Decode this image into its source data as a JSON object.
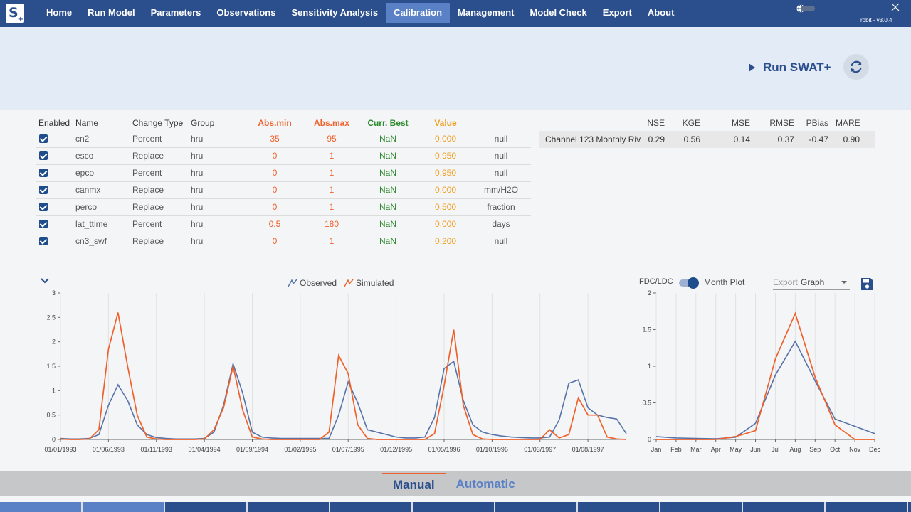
{
  "app": {
    "logo_text": "S",
    "logo_plus": "+",
    "user_version": "robit - v3.0.4"
  },
  "nav": {
    "items": [
      "Home",
      "Run Model",
      "Parameters",
      "Observations",
      "Sensitivity Analysis",
      "Calibration",
      "Management",
      "Model Check",
      "Export",
      "About"
    ],
    "active": "Calibration"
  },
  "header": {
    "run_label": "Run SWAT+"
  },
  "param_table": {
    "headers": {
      "enabled": "Enabled",
      "name": "Name",
      "change_type": "Change Type",
      "group": "Group",
      "abs_min": "Abs.min",
      "abs_max": "Abs.max",
      "curr_best": "Curr. Best",
      "value": "Value"
    },
    "rows": [
      {
        "enabled": true,
        "name": "cn2",
        "change_type": "Percent",
        "group": "hru",
        "abs_min": "35",
        "abs_max": "95",
        "curr_best": "NaN",
        "value": "0.000",
        "unit": "null"
      },
      {
        "enabled": true,
        "name": "esco",
        "change_type": "Replace",
        "group": "hru",
        "abs_min": "0",
        "abs_max": "1",
        "curr_best": "NaN",
        "value": "0.950",
        "unit": "null"
      },
      {
        "enabled": true,
        "name": "epco",
        "change_type": "Percent",
        "group": "hru",
        "abs_min": "0",
        "abs_max": "1",
        "curr_best": "NaN",
        "value": "0.950",
        "unit": "null"
      },
      {
        "enabled": true,
        "name": "canmx",
        "change_type": "Replace",
        "group": "hru",
        "abs_min": "0",
        "abs_max": "1",
        "curr_best": "NaN",
        "value": "0.000",
        "unit": "mm/H2O"
      },
      {
        "enabled": true,
        "name": "perco",
        "change_type": "Replace",
        "group": "hru",
        "abs_min": "0",
        "abs_max": "1",
        "curr_best": "NaN",
        "value": "0.500",
        "unit": "fraction"
      },
      {
        "enabled": true,
        "name": "lat_ttime",
        "change_type": "Percent",
        "group": "hru",
        "abs_min": "0.5",
        "abs_max": "180",
        "curr_best": "NaN",
        "value": "0.000",
        "unit": "days"
      },
      {
        "enabled": true,
        "name": "cn3_swf",
        "change_type": "Replace",
        "group": "hru",
        "abs_min": "0",
        "abs_max": "1",
        "curr_best": "NaN",
        "value": "0.200",
        "unit": "null"
      }
    ]
  },
  "metrics": {
    "headers": {
      "nse": "NSE",
      "kge": "KGE",
      "mse": "MSE",
      "rmse": "RMSE",
      "pbias": "PBias",
      "mare": "MARE"
    },
    "row": {
      "name": "Channel 123 Monthly Riv",
      "nse": "0.29",
      "kge": "0.56",
      "mse": "0.14",
      "rmse": "0.37",
      "pbias": "-0.47",
      "mare": "0.90"
    }
  },
  "right_controls": {
    "fdc_label": "FDC/LDC",
    "fdc_toggle_on": true,
    "month_plot_label": "Month Plot",
    "export_label": "Export",
    "export_value": "Graph"
  },
  "tabs": {
    "items": [
      "Manual",
      "Automatic"
    ],
    "active": "Manual"
  },
  "colors": {
    "observed": "#5773a8",
    "simulated": "#f0602a",
    "nav_bg": "#2b4f8c",
    "nav_active": "#5a80c6"
  },
  "chart_data": [
    {
      "type": "line",
      "title": "",
      "xlabel": "",
      "ylabel": "",
      "ylim": [
        0,
        3
      ],
      "yticks": [
        0,
        0.5,
        1,
        1.5,
        2,
        2.5,
        3
      ],
      "yticklabels": [
        "0",
        "0.5",
        "1",
        "1.5",
        "2",
        "2.5",
        "3"
      ],
      "xticklabels": [
        "01/01/1993",
        "01/06/1993",
        "01/11/1993",
        "01/04/1994",
        "01/09/1994",
        "01/02/1995",
        "01/07/1995",
        "01/12/1995",
        "01/05/1996",
        "01/10/1996",
        "01/03/1997",
        "01/08/1997"
      ],
      "x_period": "monthly, 01/1993 to 12/1997",
      "legend_position": "top-center",
      "grid": "vertical",
      "series": [
        {
          "name": "Observed",
          "values": [
            0.02,
            0.01,
            0.01,
            0.02,
            0.1,
            0.7,
            1.12,
            0.8,
            0.3,
            0.1,
            0.04,
            0.02,
            0.01,
            0.01,
            0.01,
            0.02,
            0.15,
            0.7,
            1.55,
            0.95,
            0.15,
            0.05,
            0.03,
            0.02,
            0.02,
            0.02,
            0.02,
            0.02,
            0.02,
            0.5,
            1.18,
            0.75,
            0.2,
            0.15,
            0.1,
            0.05,
            0.03,
            0.03,
            0.05,
            0.45,
            1.45,
            1.6,
            0.8,
            0.3,
            0.15,
            0.1,
            0.07,
            0.05,
            0.04,
            0.03,
            0.03,
            0.05,
            0.4,
            1.15,
            1.22,
            0.65,
            0.5,
            0.45,
            0.42,
            0.12
          ]
        },
        {
          "name": "Simulated",
          "values": [
            0.01,
            0.0,
            0.0,
            0.01,
            0.2,
            1.85,
            2.6,
            1.5,
            0.5,
            0.05,
            0.01,
            0.0,
            0.0,
            0.0,
            0.0,
            0.01,
            0.2,
            0.65,
            1.5,
            0.6,
            0.05,
            0.01,
            0.0,
            0.0,
            0.0,
            0.0,
            0.0,
            0.0,
            0.15,
            1.72,
            1.35,
            0.3,
            0.02,
            0.0,
            0.0,
            0.0,
            0.0,
            0.0,
            0.0,
            0.12,
            1.1,
            2.25,
            0.7,
            0.1,
            0.01,
            0.0,
            0.0,
            0.0,
            0.0,
            0.0,
            0.0,
            0.2,
            0.03,
            0.1,
            0.85,
            0.5,
            0.5,
            0.05,
            0.01,
            0.0
          ]
        }
      ]
    },
    {
      "type": "line",
      "title": "",
      "xlabel": "",
      "ylabel": "",
      "ylim": [
        0,
        2
      ],
      "yticks": [
        0,
        0.5,
        1,
        1.5,
        2
      ],
      "yticklabels": [
        "0",
        "0.5",
        "1",
        "1.5",
        "2"
      ],
      "categories": [
        "Jan",
        "Feb",
        "Mar",
        "Apr",
        "May",
        "Jun",
        "Jul",
        "Aug",
        "Sep",
        "Oct",
        "Nov",
        "Dec"
      ],
      "grid": "vertical",
      "series": [
        {
          "name": "Observed",
          "values": [
            0.04,
            0.02,
            0.015,
            0.01,
            0.03,
            0.22,
            0.88,
            1.34,
            0.8,
            0.28,
            0.18,
            0.08
          ]
        },
        {
          "name": "Simulated",
          "values": [
            0.0,
            0.0,
            0.0,
            0.0,
            0.04,
            0.12,
            1.1,
            1.72,
            0.85,
            0.2,
            0.0,
            0.0
          ]
        }
      ]
    }
  ]
}
